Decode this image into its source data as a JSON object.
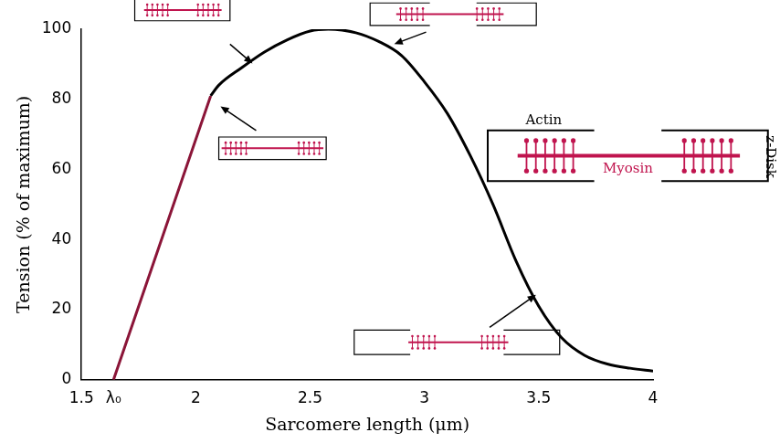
{
  "chart_data": {
    "type": "line",
    "x_label": "Sarcomere length (μm)",
    "y_label": "Tension (% of maximum)",
    "series": [
      {
        "color": "#8b1538",
        "x": [
          1.64,
          2.065
        ],
        "values": [
          0,
          81
        ]
      },
      {
        "color": "#000000",
        "x": [
          2.065,
          2.1,
          2.2,
          2.3,
          2.4,
          2.5,
          2.58,
          2.7,
          2.8,
          2.9,
          3.0,
          3.1,
          3.2,
          3.3,
          3.4,
          3.5,
          3.6,
          3.7,
          3.8,
          3.9,
          4.0
        ],
        "values": [
          81,
          84,
          89,
          93.5,
          97,
          99.5,
          100,
          99,
          96.5,
          92.5,
          85,
          76,
          64,
          50,
          34,
          21,
          12,
          7,
          4.5,
          3.3,
          2.5
        ]
      }
    ],
    "xlim": [
      1.5,
      4
    ],
    "xticks": [
      1.5,
      {
        "value": 1.64,
        "label": "λ₀"
      },
      2,
      2.5,
      3,
      3.5,
      4
    ],
    "ylim": [
      0,
      100
    ],
    "yticks": [
      0,
      20,
      40,
      60,
      80,
      100
    ],
    "grid": false,
    "annotations": [
      "Actin",
      "Myosin",
      "z-Disk"
    ]
  }
}
